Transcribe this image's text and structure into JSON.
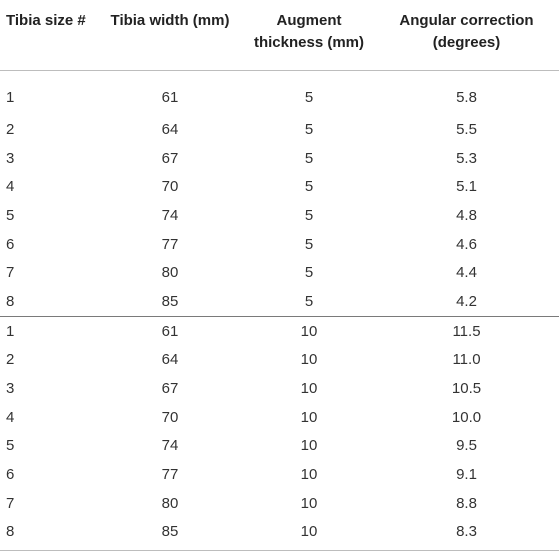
{
  "table": {
    "headers": [
      "Tibia size #",
      "Tibia width (mm)",
      "Augment thickness (mm)",
      "Angular correction (degrees)"
    ],
    "groups": [
      {
        "rows": [
          [
            "1",
            "61",
            "5",
            "5.8"
          ],
          [
            "2",
            "64",
            "5",
            "5.5"
          ],
          [
            "3",
            "67",
            "5",
            "5.3"
          ],
          [
            "4",
            "70",
            "5",
            "5.1"
          ],
          [
            "5",
            "74",
            "5",
            "4.8"
          ],
          [
            "6",
            "77",
            "5",
            "4.6"
          ],
          [
            "7",
            "80",
            "5",
            "4.4"
          ],
          [
            "8",
            "85",
            "5",
            "4.2"
          ]
        ]
      },
      {
        "rows": [
          [
            "1",
            "61",
            "10",
            "11.5"
          ],
          [
            "2",
            "64",
            "10",
            "11.0"
          ],
          [
            "3",
            "67",
            "10",
            "10.5"
          ],
          [
            "4",
            "70",
            "10",
            "10.0"
          ],
          [
            "5",
            "74",
            "10",
            "9.5"
          ],
          [
            "6",
            "77",
            "10",
            "9.1"
          ],
          [
            "7",
            "80",
            "10",
            "8.8"
          ],
          [
            "8",
            "85",
            "10",
            "8.3"
          ]
        ]
      }
    ]
  }
}
